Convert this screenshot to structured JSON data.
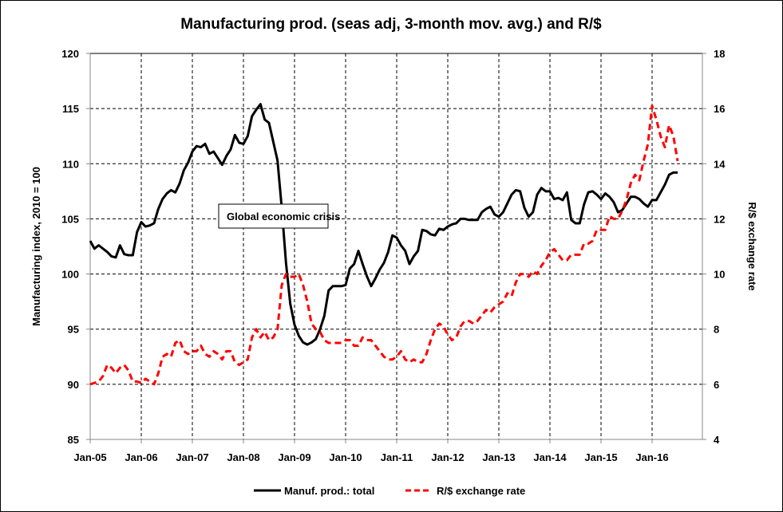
{
  "chart_data": {
    "type": "line",
    "title": "Manufacturing prod. (seas adj, 3-month mov. avg.) and R/$",
    "xlabel": "",
    "ylabel": "Manufacturing index, 2010 = 100",
    "y2label": "R/$ exchange rate",
    "ylim": [
      85,
      120
    ],
    "y2lim": [
      4,
      18
    ],
    "yticks": [
      "85",
      "90",
      "95",
      "100",
      "105",
      "110",
      "115",
      "120"
    ],
    "y2ticks": [
      "4",
      "6",
      "8",
      "10",
      "12",
      "14",
      "16",
      "18"
    ],
    "xticks": [
      "Jan-05",
      "Jan-06",
      "Jan-07",
      "Jan-08",
      "Jan-09",
      "Jan-10",
      "Jan-11",
      "Jan-12",
      "Jan-13",
      "Jan-14",
      "Jan-15",
      "Jan-16"
    ],
    "x_range": {
      "start": "Jan-05",
      "end": "Jul-16",
      "frequency": "monthly"
    },
    "grid": true,
    "legend_position": "bottom",
    "annotation": "Global economic crisis",
    "series": [
      {
        "name": "Manuf. prod.: total",
        "axis": "left",
        "color": "#000000",
        "style": "solid",
        "values": [
          103.0,
          102.3,
          102.6,
          102.3,
          102.0,
          101.6,
          101.5,
          102.6,
          101.8,
          101.7,
          101.7,
          103.8,
          104.7,
          104.3,
          104.4,
          104.6,
          105.9,
          106.8,
          107.3,
          107.6,
          107.4,
          108.2,
          109.4,
          110.1,
          111.1,
          111.6,
          111.5,
          111.8,
          110.9,
          111.1,
          110.5,
          109.9,
          110.7,
          111.3,
          112.6,
          111.9,
          111.8,
          112.5,
          114.3,
          114.9,
          115.4,
          114.0,
          113.7,
          112.0,
          110.3,
          106.0,
          101.0,
          97.3,
          95.4,
          94.4,
          93.8,
          93.6,
          93.8,
          94.1,
          95.0,
          96.2,
          98.5,
          98.9,
          98.9,
          98.9,
          99.0,
          100.5,
          100.9,
          102.1,
          100.9,
          99.8,
          98.9,
          99.6,
          100.4,
          101.0,
          102.0,
          103.5,
          103.3,
          102.6,
          102.1,
          100.9,
          101.6,
          102.1,
          104.0,
          103.9,
          103.6,
          103.5,
          104.1,
          104.0,
          104.3,
          104.5,
          104.6,
          105.0,
          105.0,
          104.9,
          104.9,
          104.9,
          105.6,
          105.9,
          106.1,
          105.4,
          105.2,
          105.6,
          106.4,
          107.2,
          107.6,
          107.5,
          106.0,
          105.2,
          105.6,
          107.2,
          107.8,
          107.5,
          107.5,
          106.8,
          106.9,
          106.7,
          107.4,
          104.9,
          104.6,
          104.6,
          106.3,
          107.4,
          107.5,
          107.2,
          106.8,
          107.3,
          107.0,
          106.5,
          105.6,
          105.8,
          106.4,
          107.0,
          107.0,
          106.8,
          106.4,
          106.1,
          106.7,
          106.7,
          107.4,
          108.1,
          109.0,
          109.2,
          109.2
        ]
      },
      {
        "name": "R/$ exchange rate",
        "axis": "right",
        "color": "#FF0000",
        "style": "dashed",
        "values": [
          6.0,
          6.05,
          6.1,
          6.3,
          6.7,
          6.6,
          6.4,
          6.6,
          6.7,
          6.5,
          6.1,
          6.1,
          6.05,
          6.2,
          6.1,
          6.0,
          6.4,
          7.0,
          7.1,
          7.0,
          7.5,
          7.6,
          7.2,
          7.1,
          7.2,
          7.2,
          7.4,
          7.1,
          7.0,
          7.2,
          7.1,
          6.9,
          7.2,
          7.2,
          6.8,
          6.7,
          6.8,
          6.9,
          7.7,
          8.0,
          7.7,
          7.9,
          7.6,
          7.7,
          8.0,
          9.6,
          10.0,
          9.9,
          9.9,
          10.0,
          9.6,
          9.0,
          8.2,
          8.0,
          7.9,
          7.6,
          7.5,
          7.5,
          7.5,
          7.5,
          7.6,
          7.6,
          7.4,
          7.4,
          7.7,
          7.6,
          7.6,
          7.4,
          7.2,
          7.0,
          6.9,
          6.9,
          7.0,
          7.2,
          6.9,
          6.8,
          6.9,
          6.8,
          6.8,
          7.1,
          7.6,
          8.0,
          8.2,
          8.1,
          7.8,
          7.6,
          7.7,
          8.1,
          8.3,
          8.3,
          8.2,
          8.3,
          8.5,
          8.7,
          8.6,
          8.8,
          8.9,
          9.0,
          9.3,
          9.2,
          9.7,
          10.0,
          10.0,
          9.9,
          10.1,
          10.0,
          10.3,
          10.5,
          10.8,
          10.9,
          10.7,
          10.5,
          10.5,
          10.7,
          10.7,
          10.7,
          11.1,
          11.1,
          11.2,
          11.6,
          11.6,
          11.6,
          12.1,
          12.0,
          12.0,
          12.3,
          12.7,
          13.3,
          13.6,
          13.4,
          14.1,
          14.7,
          16.1,
          15.6,
          15.0,
          14.6,
          15.4,
          15.0,
          14.1
        ]
      }
    ]
  }
}
